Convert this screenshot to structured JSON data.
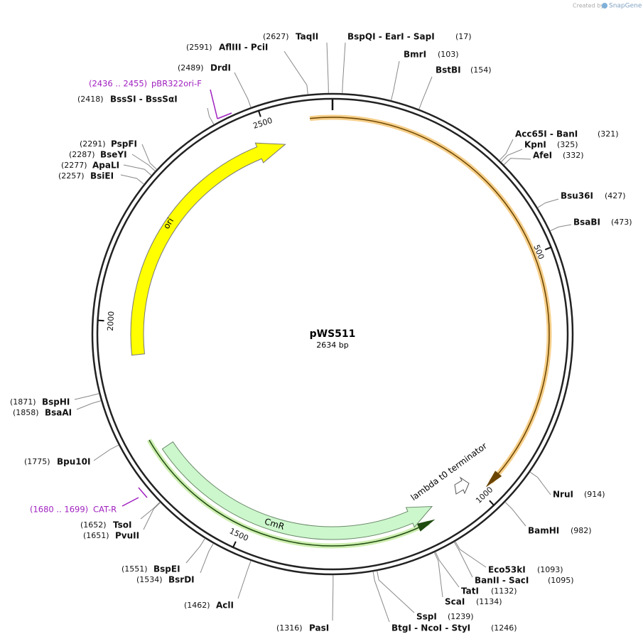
{
  "watermark": {
    "prefix": "Created by",
    "brand": "SnapGene"
  },
  "map": {
    "name": "pWS511",
    "size": "2634 bp",
    "ruler": [
      "500",
      "1000",
      "1500",
      "2000",
      "2500"
    ]
  },
  "features": [
    {
      "name": "ori"
    },
    {
      "name": "CmR"
    },
    {
      "name": "lambda t0 terminator"
    }
  ],
  "primers": [
    {
      "name": "pBR322ori-F",
      "range": "(2436 .. 2455)"
    },
    {
      "name": "CAT-R",
      "range": "(1680 .. 1699)"
    }
  ],
  "sites": [
    {
      "name": "TaqII",
      "position": "(2627)"
    },
    {
      "name": "BspQI - EarI - SapI",
      "position": "(17)"
    },
    {
      "name": "BmrI",
      "position": "(103)"
    },
    {
      "name": "BstBI",
      "position": "(154)"
    },
    {
      "name": "Acc65I - BanI",
      "position": "(321)"
    },
    {
      "name": "KpnI",
      "position": "(325)"
    },
    {
      "name": "AfeI",
      "position": "(332)"
    },
    {
      "name": "Bsu36I",
      "position": "(427)"
    },
    {
      "name": "BsaBI",
      "position": "(473)"
    },
    {
      "name": "NruI",
      "position": "(914)"
    },
    {
      "name": "BamHI",
      "position": "(982)"
    },
    {
      "name": "Eco53kI",
      "position": "(1093)"
    },
    {
      "name": "BanII - SacI",
      "position": "(1095)"
    },
    {
      "name": "TatI",
      "position": "(1132)"
    },
    {
      "name": "ScaI",
      "position": "(1134)"
    },
    {
      "name": "SspI",
      "position": "(1239)"
    },
    {
      "name": "BtgI - NcoI - StyI",
      "position": "(1246)"
    },
    {
      "name": "PasI",
      "position": "(1316)"
    },
    {
      "name": "AclI",
      "position": "(1462)"
    },
    {
      "name": "BsrDI",
      "position": "(1534)"
    },
    {
      "name": "BspEI",
      "position": "(1551)"
    },
    {
      "name": "PvuII",
      "position": "(1651)"
    },
    {
      "name": "TsoI",
      "position": "(1652)"
    },
    {
      "name": "Bpu10I",
      "position": "(1775)"
    },
    {
      "name": "BsaAI",
      "position": "(1858)"
    },
    {
      "name": "BspHI",
      "position": "(1871)"
    },
    {
      "name": "BsiEI",
      "position": "(2257)"
    },
    {
      "name": "ApaLI",
      "position": "(2277)"
    },
    {
      "name": "BseYI",
      "position": "(2287)"
    },
    {
      "name": "PspFI",
      "position": "(2291)"
    },
    {
      "name": "BssSI - BssSαI",
      "position": "(2418)"
    },
    {
      "name": "DrdI",
      "position": "(2489)"
    },
    {
      "name": "AflIII - PciI",
      "position": "(2591)"
    }
  ]
}
